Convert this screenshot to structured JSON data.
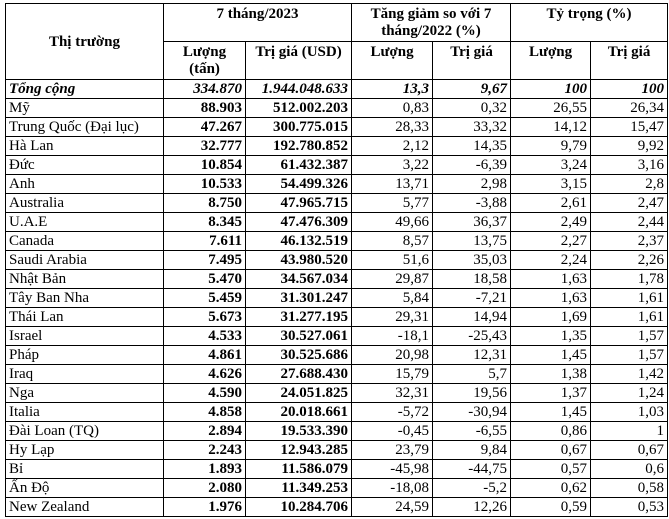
{
  "header": {
    "market": "Thị trường",
    "period": "7 tháng/2023",
    "change": "Tăng giảm so với 7 tháng/2022 (%)",
    "share": "Tỷ trọng (%)",
    "sub": [
      "Lượng (tấn)",
      "Trị giá (USD)",
      "Lượng",
      "Trị giá",
      "Lượng",
      "Trị giá"
    ]
  },
  "rows": [
    [
      "Tổng cộng",
      "334.870",
      "1.944.048.633",
      "13,3",
      "9,67",
      "100",
      "100"
    ],
    [
      "Mỹ",
      "88.903",
      "512.002.203",
      "0,83",
      "0,32",
      "26,55",
      "26,34"
    ],
    [
      "Trung Quốc (Đại lục)",
      "47.267",
      "300.775.015",
      "28,33",
      "33,32",
      "14,12",
      "15,47"
    ],
    [
      "Hà Lan",
      "32.777",
      "192.780.852",
      "2,12",
      "14,35",
      "9,79",
      "9,92"
    ],
    [
      "Đức",
      "10.854",
      "61.432.387",
      "3,22",
      "-6,39",
      "3,24",
      "3,16"
    ],
    [
      "Anh",
      "10.533",
      "54.499.326",
      "13,71",
      "2,98",
      "3,15",
      "2,8"
    ],
    [
      "Australia",
      "8.750",
      "47.965.715",
      "5,77",
      "-3,88",
      "2,61",
      "2,47"
    ],
    [
      "U.A.E",
      "8.345",
      "47.476.309",
      "49,66",
      "36,37",
      "2,49",
      "2,44"
    ],
    [
      "Canada",
      "7.611",
      "46.132.519",
      "8,57",
      "13,75",
      "2,27",
      "2,37"
    ],
    [
      "Saudi Arabia",
      "7.495",
      "43.980.520",
      "51,6",
      "35,03",
      "2,24",
      "2,26"
    ],
    [
      "Nhật Bản",
      "5.470",
      "34.567.034",
      "29,87",
      "18,58",
      "1,63",
      "1,78"
    ],
    [
      "Tây Ban Nha",
      "5.459",
      "31.301.247",
      "5,84",
      "-7,21",
      "1,63",
      "1,61"
    ],
    [
      "Thái Lan",
      "5.673",
      "31.277.195",
      "29,31",
      "14,94",
      "1,69",
      "1,61"
    ],
    [
      "Israel",
      "4.533",
      "30.527.061",
      "-18,1",
      "-25,43",
      "1,35",
      "1,57"
    ],
    [
      "Pháp",
      "4.861",
      "30.525.686",
      "20,98",
      "12,31",
      "1,45",
      "1,57"
    ],
    [
      "Iraq",
      "4.626",
      "27.688.430",
      "15,79",
      "5,7",
      "1,38",
      "1,42"
    ],
    [
      "Nga",
      "4.590",
      "24.051.825",
      "32,31",
      "19,56",
      "1,37",
      "1,24"
    ],
    [
      "Italia",
      "4.858",
      "20.018.661",
      "-5,72",
      "-30,94",
      "1,45",
      "1,03"
    ],
    [
      "Đài Loan (TQ)",
      "2.894",
      "19.533.390",
      "-0,45",
      "-6,55",
      "0,86",
      "1"
    ],
    [
      "Hy Lạp",
      "2.243",
      "12.943.285",
      "23,79",
      "9,84",
      "0,67",
      "0,67"
    ],
    [
      "Bỉ",
      "1.893",
      "11.586.079",
      "-45,98",
      "-44,75",
      "0,57",
      "0,6"
    ],
    [
      "Ấn Độ",
      "2.080",
      "11.349.253",
      "-18,08",
      "-5,2",
      "0,62",
      "0,58"
    ],
    [
      "New Zealand",
      "1.976",
      "10.284.706",
      "24,59",
      "12,26",
      "0,59",
      "0,53"
    ]
  ]
}
